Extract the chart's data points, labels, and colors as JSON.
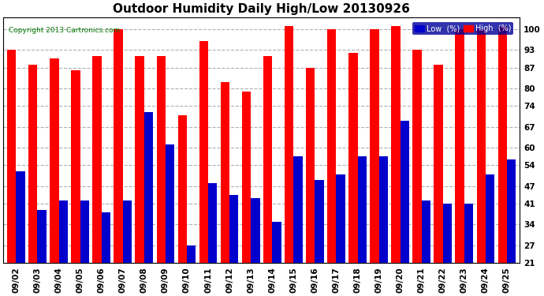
{
  "title": "Outdoor Humidity Daily High/Low 20130926",
  "copyright": "Copyright 2013 Cartronics.com",
  "dates": [
    "09/02",
    "09/03",
    "09/04",
    "09/05",
    "09/06",
    "09/07",
    "09/08",
    "09/09",
    "09/10",
    "09/11",
    "09/12",
    "09/13",
    "09/14",
    "09/15",
    "09/16",
    "09/17",
    "09/18",
    "09/19",
    "09/20",
    "09/21",
    "09/22",
    "09/23",
    "09/24",
    "09/25"
  ],
  "high": [
    93,
    88,
    90,
    86,
    91,
    100,
    91,
    91,
    71,
    96,
    82,
    79,
    91,
    101,
    87,
    100,
    92,
    100,
    101,
    93,
    88,
    100,
    100,
    101
  ],
  "low": [
    52,
    39,
    42,
    42,
    38,
    42,
    72,
    61,
    27,
    48,
    44,
    43,
    35,
    57,
    49,
    51,
    57,
    57,
    69,
    42,
    41,
    41,
    51,
    56
  ],
  "high_color": "#ff0000",
  "low_color": "#0000cc",
  "bg_color": "#ffffff",
  "plot_bg_color": "#ffffff",
  "grid_color": "#b0b0b0",
  "yticks": [
    21,
    27,
    34,
    41,
    47,
    54,
    60,
    67,
    74,
    80,
    87,
    93,
    100
  ],
  "ymin": 21,
  "ymax": 104,
  "title_fontsize": 11,
  "tick_fontsize": 7.5,
  "bar_width": 0.42,
  "legend_low_label": "Low  (%)",
  "legend_high_label": "High  (%)"
}
